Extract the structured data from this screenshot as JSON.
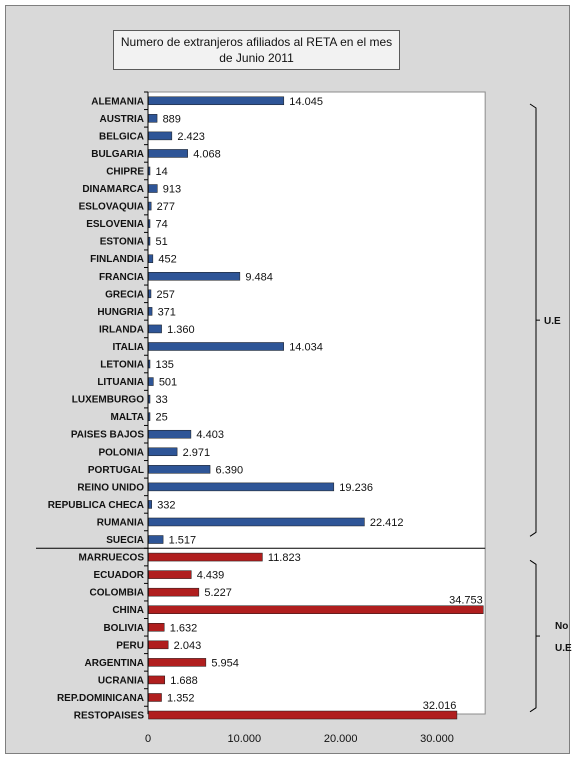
{
  "chart_data": {
    "type": "bar",
    "orientation": "horizontal",
    "title": "Numero de extranjeros afiliados al RETA en el mes de Junio 2011",
    "xlim": [
      0,
      35000
    ],
    "x_ticks": [
      0,
      10000,
      20000,
      30000
    ],
    "x_tick_labels": [
      "0",
      "10.000",
      "20.000",
      "30.000"
    ],
    "grid": false,
    "series": [
      {
        "color": "#2e5597",
        "categories": [
          "ALEMANIA",
          "AUSTRIA",
          "BELGICA",
          "BULGARIA",
          "CHIPRE",
          "DINAMARCA",
          "ESLOVAQUIA",
          "ESLOVENIA",
          "ESTONIA",
          "FINLANDIA",
          "FRANCIA",
          "GRECIA",
          "HUNGRIA",
          "IRLANDA",
          "ITALIA",
          "LETONIA",
          "LITUANIA",
          "LUXEMBURGO",
          "MALTA",
          "PAISES BAJOS",
          "POLONIA",
          "PORTUGAL",
          "REINO UNIDO",
          "REPUBLICA CHECA",
          "RUMANIA",
          "SUECIA"
        ],
        "values": [
          14045,
          889,
          2423,
          4068,
          14,
          913,
          277,
          74,
          51,
          452,
          9484,
          257,
          371,
          1360,
          14034,
          135,
          501,
          33,
          25,
          4403,
          2971,
          6390,
          19236,
          332,
          22412,
          1517
        ],
        "value_labels": [
          "14.045",
          "889",
          "2.423",
          "4.068",
          "14",
          "913",
          "277",
          "74",
          "51",
          "452",
          "9.484",
          "257",
          "371",
          "1.360",
          "14.034",
          "135",
          "501",
          "33",
          "25",
          "4.403",
          "2.971",
          "6.390",
          "19.236",
          "332",
          "22.412",
          "1.517"
        ]
      },
      {
        "color": "#b01e1e",
        "categories": [
          "MARRUECOS",
          "ECUADOR",
          "COLOMBIA",
          "CHINA",
          "BOLIVIA",
          "PERU",
          "ARGENTINA",
          "UCRANIA",
          "REP.DOMINICANA",
          "RESTOPAISES"
        ],
        "values": [
          11823,
          4439,
          5227,
          34753,
          1632,
          2043,
          5954,
          1688,
          1352,
          32016
        ],
        "value_labels": [
          "11.823",
          "4.439",
          "5.227",
          "34.753",
          "1.632",
          "2.043",
          "5.954",
          "1.688",
          "1.352",
          "32.016"
        ]
      }
    ],
    "group_labels": [
      {
        "text_lines": [
          "U.E"
        ]
      },
      {
        "text_lines": [
          "No",
          "U.E"
        ]
      }
    ]
  }
}
